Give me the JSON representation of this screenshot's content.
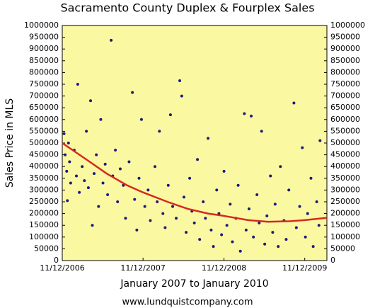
{
  "chart_data": {
    "type": "scatter",
    "title": "Sacramento County Duplex & Fourplex Sales",
    "x_label": "January 2007 to January 2010",
    "y_label": "Sales Price in MLS",
    "source": "www.lundquistcompany.com",
    "background": "#fbf8a2",
    "xlim": [
      "11/12/2006",
      "2/20/2010"
    ],
    "xticks": [
      "11/12/2006",
      "11/12/2007",
      "11/12/2008",
      "11/12/2009"
    ],
    "ylim": [
      0,
      1000000
    ],
    "yticks": [
      0,
      50000,
      100000,
      150000,
      200000,
      250000,
      300000,
      350000,
      400000,
      450000,
      500000,
      550000,
      600000,
      650000,
      700000,
      750000,
      800000,
      850000,
      900000,
      950000,
      1000000
    ],
    "y2lim": [
      0,
      1000000
    ],
    "y2ticks": [
      0,
      50000,
      100000,
      150000,
      200000,
      250000,
      300000,
      350000,
      400000,
      450000,
      500000,
      550000,
      600000,
      650000,
      700000,
      750000,
      800000,
      850000,
      900000,
      950000,
      1000000
    ],
    "series": [
      {
        "type": "scatter",
        "color": "#1c1c78",
        "x": [
          "11/20/2006",
          "11/25/2006",
          "12/2/2006",
          "12/5/2006",
          "12/10/2006",
          "12/15/2006",
          "12/20/2006",
          "1/5/2007",
          "1/15/2007",
          "1/21/2007",
          "1/28/2007",
          "2/10/2007",
          "2/20/2007",
          "3/1/2007",
          "3/10/2007",
          "3/20/2007",
          "3/28/2007",
          "4/5/2007",
          "4/15/2007",
          "4/25/2007",
          "5/5/2007",
          "5/15/2007",
          "5/25/2007",
          "6/5/2007",
          "6/21/2007",
          "6/28/2007",
          "7/10/2007",
          "7/20/2007",
          "8/1/2007",
          "8/15/2007",
          "8/25/2007",
          "9/10/2007",
          "9/25/2007",
          "10/5/2007",
          "10/15/2007",
          "10/25/2007",
          "11/5/2007",
          "11/20/2007",
          "12/5/2007",
          "12/15/2007",
          "1/5/2008",
          "1/15/2008",
          "1/25/2008",
          "2/10/2008",
          "2/20/2008",
          "3/5/2008",
          "3/15/2008",
          "3/25/2008",
          "4/10/2008",
          "4/26/2008",
          "5/5/2008",
          "5/15/2008",
          "5/25/2008",
          "6/10/2008",
          "6/20/2008",
          "7/1/2008",
          "7/15/2008",
          "7/25/2008",
          "8/10/2008",
          "8/20/2008",
          "9/1/2008",
          "9/15/2008",
          "9/25/2008",
          "10/10/2008",
          "10/20/2008",
          "11/1/2008",
          "11/12/2008",
          "11/25/2008",
          "12/10/2008",
          "12/20/2008",
          "1/5/2009",
          "1/15/2009",
          "1/25/2009",
          "2/12/2009",
          "2/20/2009",
          "3/5/2009",
          "3/15/2009",
          "3/25/2009",
          "4/10/2009",
          "4/20/2009",
          "5/1/2009",
          "5/15/2009",
          "5/25/2009",
          "6/10/2009",
          "6/20/2009",
          "7/1/2009",
          "7/15/2009",
          "7/25/2009",
          "8/10/2009",
          "8/20/2009",
          "9/1/2009",
          "9/24/2009",
          "10/5/2009",
          "10/20/2009",
          "11/1/2009",
          "11/15/2009",
          "11/25/2009",
          "12/10/2009",
          "12/20/2009",
          "1/5/2010",
          "1/15/2010",
          "1/20/2010"
        ],
        "values": [
          540000,
          450000,
          380000,
          255000,
          500000,
          420000,
          330000,
          470000,
          360000,
          750000,
          290000,
          400000,
          340000,
          550000,
          310000,
          680000,
          150000,
          370000,
          450000,
          230000,
          600000,
          330000,
          410000,
          280000,
          937000,
          360000,
          470000,
          250000,
          390000,
          320000,
          180000,
          420000,
          715000,
          260000,
          130000,
          350000,
          600000,
          230000,
          300000,
          170000,
          400000,
          250000,
          550000,
          200000,
          140000,
          320000,
          620000,
          230000,
          180000,
          765000,
          700000,
          270000,
          120000,
          350000,
          210000,
          160000,
          430000,
          90000,
          250000,
          180000,
          520000,
          130000,
          60000,
          300000,
          200000,
          110000,
          380000,
          150000,
          240000,
          80000,
          180000,
          320000,
          40000,
          625000,
          130000,
          220000,
          615000,
          100000,
          280000,
          160000,
          550000,
          70000,
          190000,
          360000,
          120000,
          240000,
          60000,
          400000,
          170000,
          90000,
          300000,
          670000,
          140000,
          230000,
          480000,
          100000,
          200000,
          350000,
          60000,
          250000,
          150000,
          510000
        ]
      },
      {
        "type": "line",
        "color": "#d42a1e",
        "x": [
          "11/12/2006",
          "3/1/2007",
          "6/1/2007",
          "9/1/2007",
          "11/12/2007",
          "3/1/2008",
          "6/1/2008",
          "9/1/2008",
          "11/12/2008",
          "3/1/2009",
          "6/1/2009",
          "9/1/2009",
          "11/12/2009",
          "2/20/2010"
        ],
        "values": [
          500000,
          430000,
          370000,
          320000,
          290000,
          250000,
          220000,
          200000,
          190000,
          172000,
          165000,
          167000,
          172000,
          182000
        ]
      }
    ]
  }
}
